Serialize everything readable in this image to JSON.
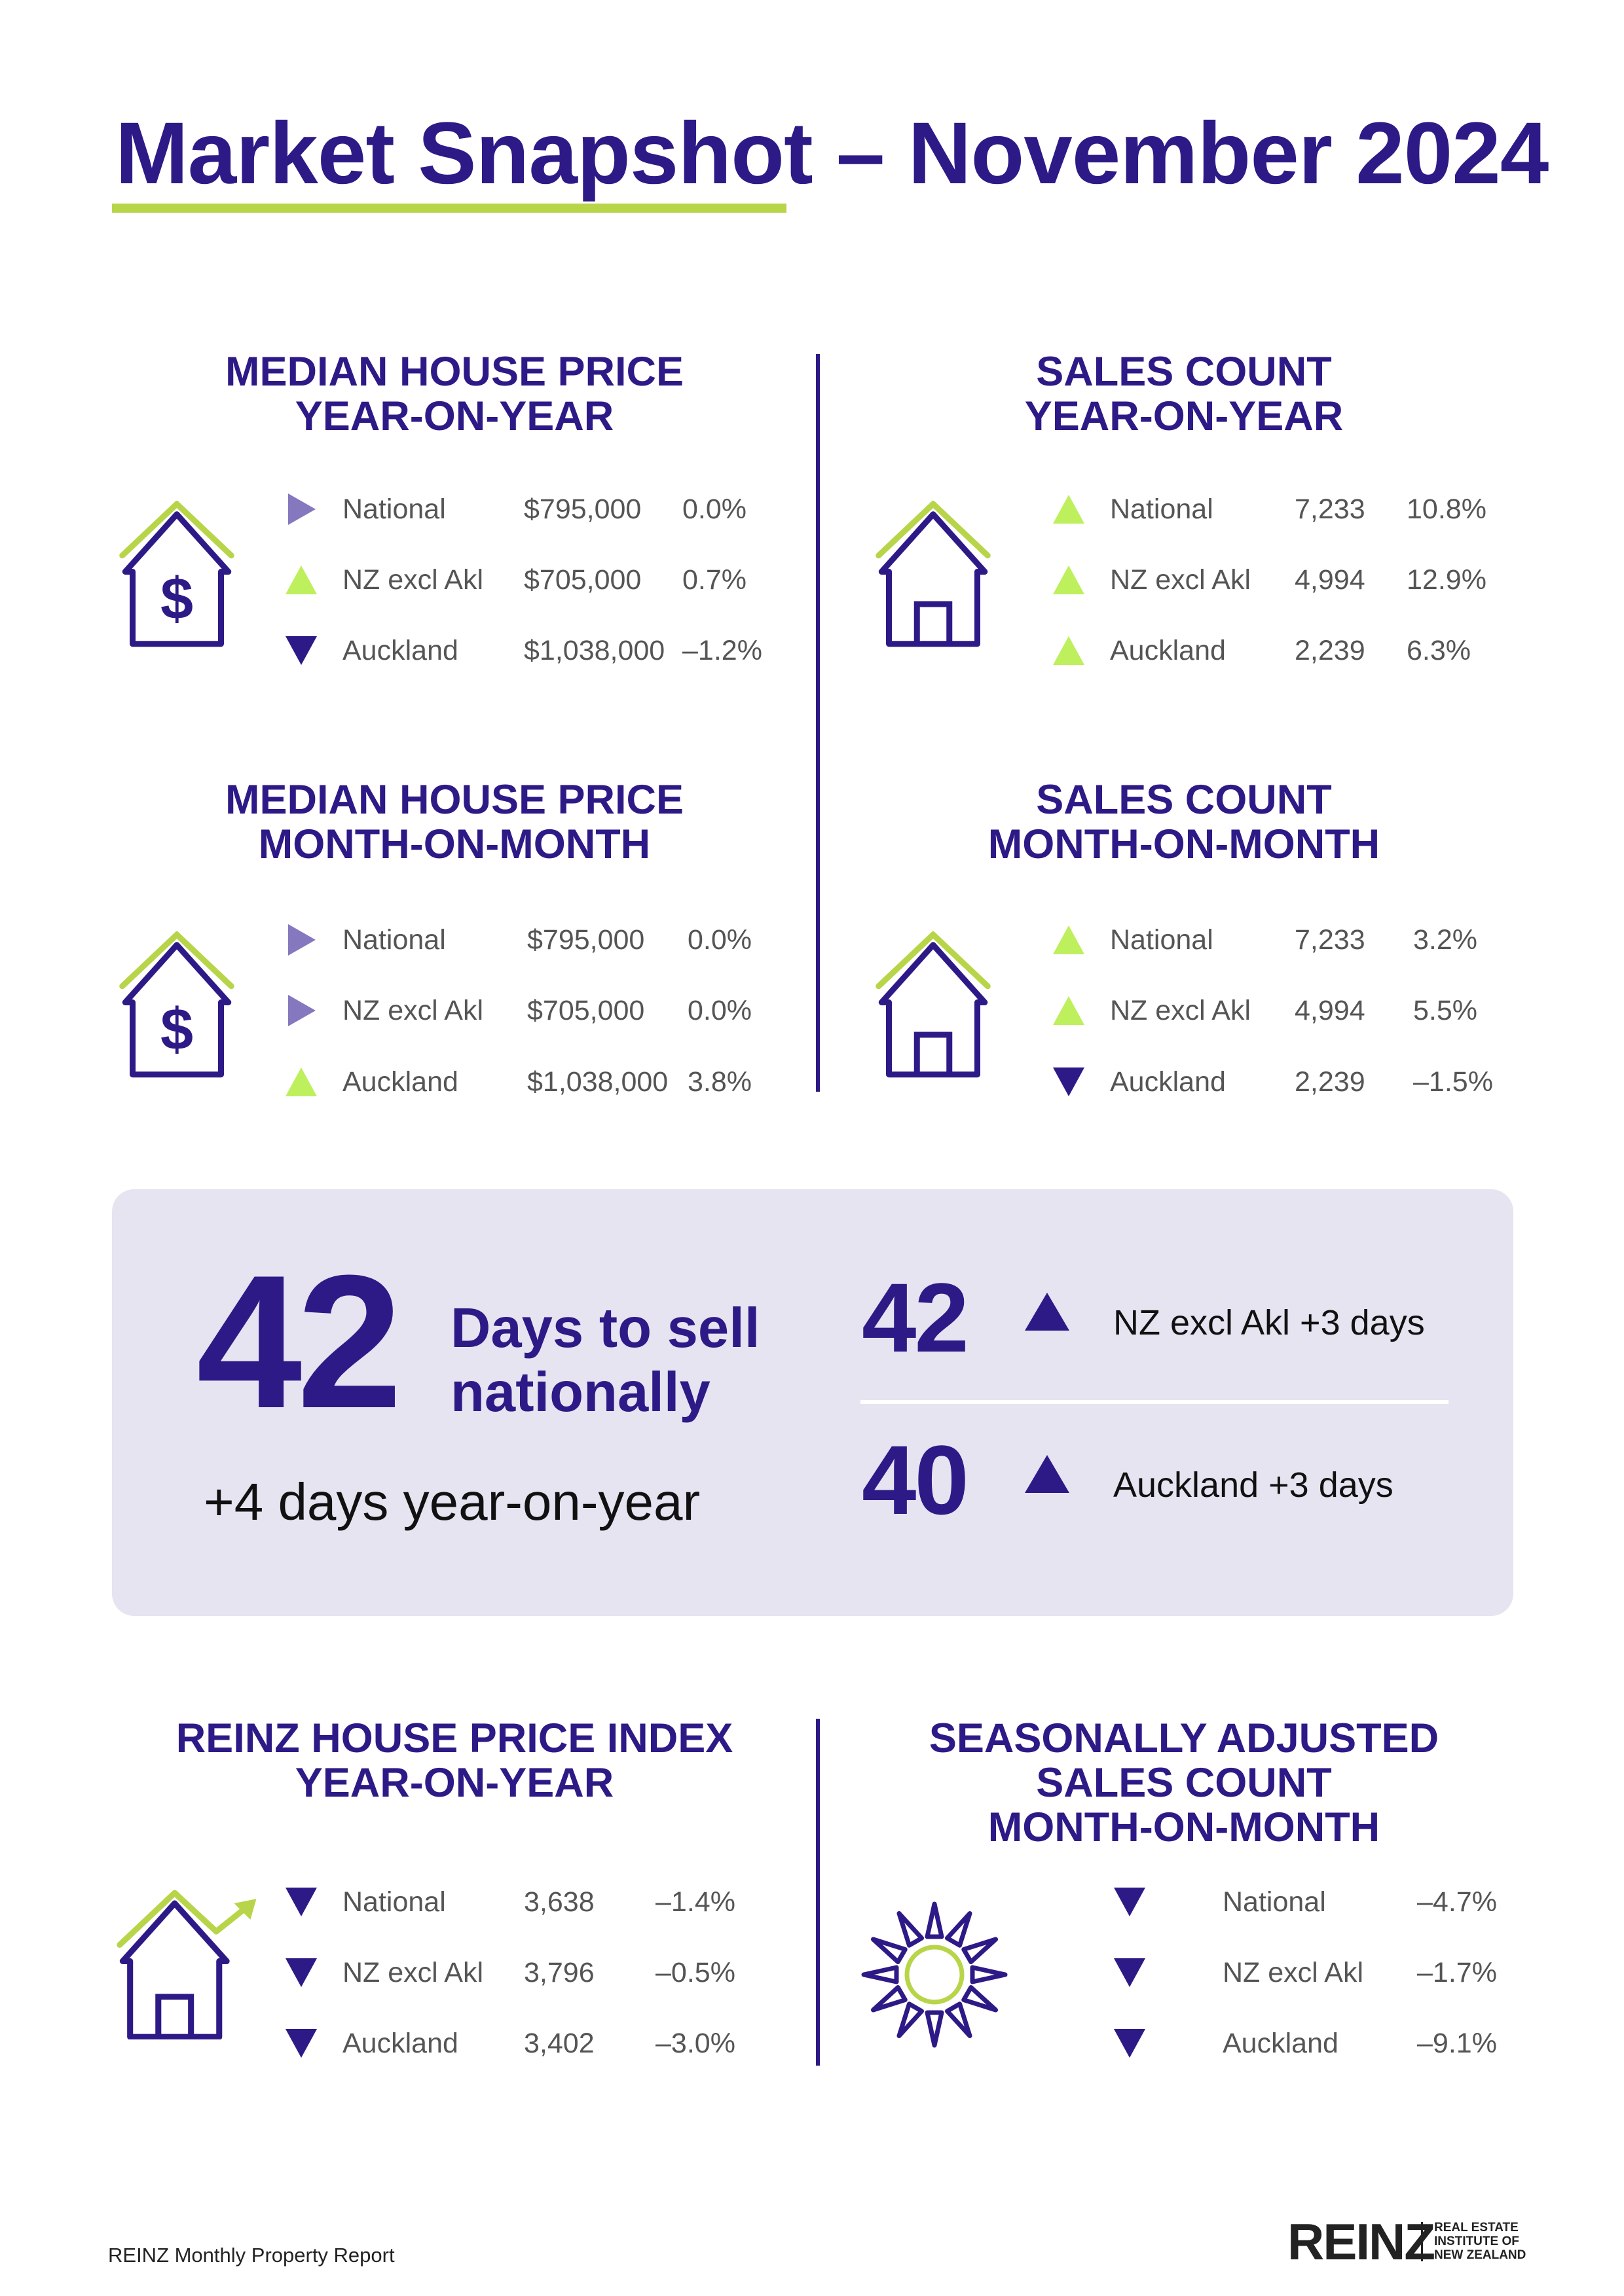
{
  "title": "Market Snapshot – November 2024",
  "colors": {
    "purple": "#2e1a87",
    "green": "#b8d54a",
    "up": "#bdf05c",
    "flat": "#8678bf",
    "panel": "#e6e4f1"
  },
  "sections": [
    {
      "title_lines": [
        "MEDIAN HOUSE PRICE",
        "YEAR-ON-YEAR"
      ],
      "icon": "house-dollar-icon",
      "rows": [
        {
          "trend": "flat",
          "label": "National",
          "value": "$795,000",
          "change": "0.0%"
        },
        {
          "trend": "up",
          "label": "NZ excl Akl",
          "value": "$705,000",
          "change": "0.7%"
        },
        {
          "trend": "down",
          "label": "Auckland",
          "value": "$1,038,000",
          "change": "–1.2%"
        }
      ]
    },
    {
      "title_lines": [
        "SALES COUNT",
        "YEAR-ON-YEAR"
      ],
      "icon": "house-icon",
      "rows": [
        {
          "trend": "up",
          "label": "National",
          "value": "7,233",
          "change": "10.8%"
        },
        {
          "trend": "up",
          "label": "NZ excl Akl",
          "value": "4,994",
          "change": "12.9%"
        },
        {
          "trend": "up",
          "label": "Auckland",
          "value": "2,239",
          "change": "6.3%"
        }
      ]
    },
    {
      "title_lines": [
        "MEDIAN HOUSE PRICE",
        "MONTH-ON-MONTH"
      ],
      "icon": "house-dollar-icon",
      "rows": [
        {
          "trend": "flat",
          "label": "National",
          "value": "$795,000",
          "change": "0.0%"
        },
        {
          "trend": "flat",
          "label": "NZ excl Akl",
          "value": "$705,000",
          "change": "0.0%"
        },
        {
          "trend": "up",
          "label": "Auckland",
          "value": "$1,038,000",
          "change": "3.8%"
        }
      ]
    },
    {
      "title_lines": [
        "SALES COUNT",
        "MONTH-ON-MONTH"
      ],
      "icon": "house-icon",
      "rows": [
        {
          "trend": "up",
          "label": "National",
          "value": "7,233",
          "change": "3.2%"
        },
        {
          "trend": "up",
          "label": "NZ excl Akl",
          "value": "4,994",
          "change": "5.5%"
        },
        {
          "trend": "down",
          "label": "Auckland",
          "value": "2,239",
          "change": "–1.5%"
        }
      ]
    },
    {
      "title_lines": [
        "REINZ HOUSE PRICE INDEX",
        "YEAR-ON-YEAR"
      ],
      "icon": "house-price-index-icon",
      "rows": [
        {
          "trend": "down",
          "label": "National",
          "value": "3,638",
          "change": "–1.4%"
        },
        {
          "trend": "down",
          "label": "NZ excl Akl",
          "value": "3,796",
          "change": "–0.5%"
        },
        {
          "trend": "down",
          "label": "Auckland",
          "value": "3,402",
          "change": "–3.0%"
        }
      ]
    },
    {
      "title_lines": [
        "SEASONALLY ADJUSTED",
        "SALES COUNT",
        "MONTH-ON-MONTH"
      ],
      "icon": "sun-icon",
      "rows": [
        {
          "trend": "down",
          "label": "National",
          "change": "–4.7%"
        },
        {
          "trend": "down",
          "label": "NZ excl Akl",
          "change": "–1.7%"
        },
        {
          "trend": "down",
          "label": "Auckland",
          "change": "–9.1%"
        }
      ]
    }
  ],
  "days_to_sell": {
    "national_value": "42",
    "national_label_1": "Days to sell",
    "national_label_2": "nationally",
    "national_change": "+4 days year-on-year",
    "regions": [
      {
        "value": "42",
        "trend": "up",
        "label": "NZ excl Akl +3 days"
      },
      {
        "value": "40",
        "trend": "up",
        "label": "Auckland +3 days"
      }
    ]
  },
  "footer": "REINZ Monthly Property Report",
  "logo": {
    "mark": "REINZ",
    "sub": [
      "REAL ESTATE",
      "INSTITUTE OF",
      "NEW ZEALAND"
    ]
  }
}
